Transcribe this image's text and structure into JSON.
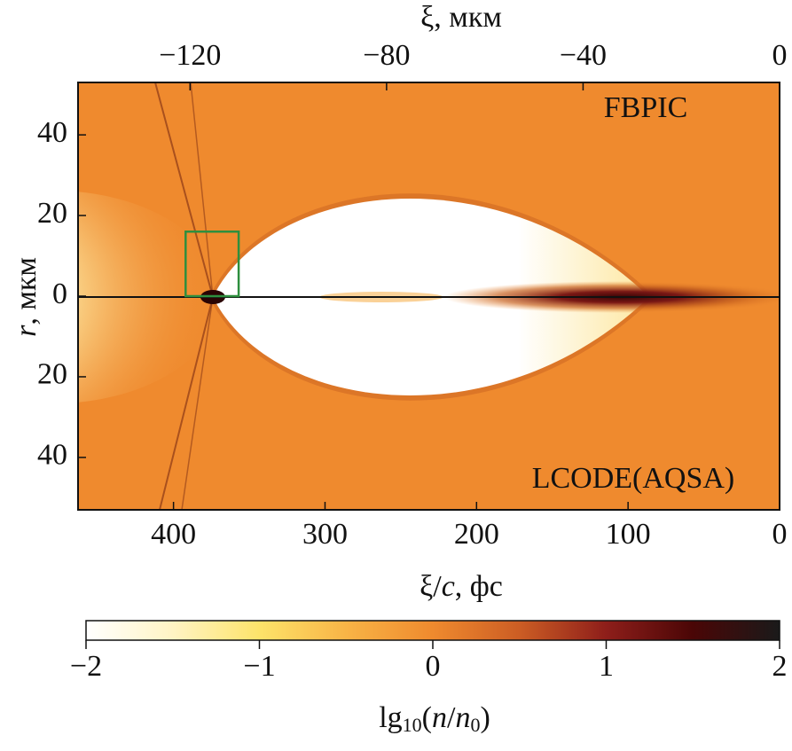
{
  "chart_data": {
    "type": "density-map",
    "x_label_segments": [
      "ξ/",
      "c",
      ", фс"
    ],
    "xlim": [
      463,
      0
    ],
    "xticks": [
      400,
      300,
      200,
      100,
      0
    ],
    "x2_label": "ξ, мкм",
    "x2lim": [
      -142.8,
      0
    ],
    "x2ticks": [
      {
        "value": -120,
        "label": "−120"
      },
      {
        "value": -80,
        "label": "−80"
      },
      {
        "value": -40,
        "label": "−40"
      },
      0
    ],
    "y_label_segments": [
      "r",
      ", мкм"
    ],
    "ylim": [
      -53,
      53
    ],
    "yticks": [
      {
        "value": -40,
        "label": "40"
      },
      {
        "value": -20,
        "label": "20"
      },
      0,
      20,
      40
    ],
    "annotations": [
      "FBPIC",
      "LCODE(AQSA)"
    ],
    "highlight_box": {
      "x": [
        392,
        357
      ],
      "y": [
        0,
        16
      ],
      "color": "#2e8f3e"
    },
    "colorbar": {
      "label_segments": [
        "lg",
        "10",
        "(",
        "n",
        "/",
        "n",
        "0",
        ")"
      ],
      "clim": [
        -2,
        2
      ],
      "ticks": [
        {
          "value": -2,
          "label": "−2"
        },
        {
          "value": -1,
          "label": "−1"
        },
        0,
        1,
        2
      ],
      "colors": [
        "#ffffff",
        "#fff4c4",
        "#fde36a",
        "#f8b446",
        "#ef8a2e",
        "#cc5d24",
        "#8e1e1a",
        "#4a0606",
        "#1a1a1a"
      ]
    }
  }
}
